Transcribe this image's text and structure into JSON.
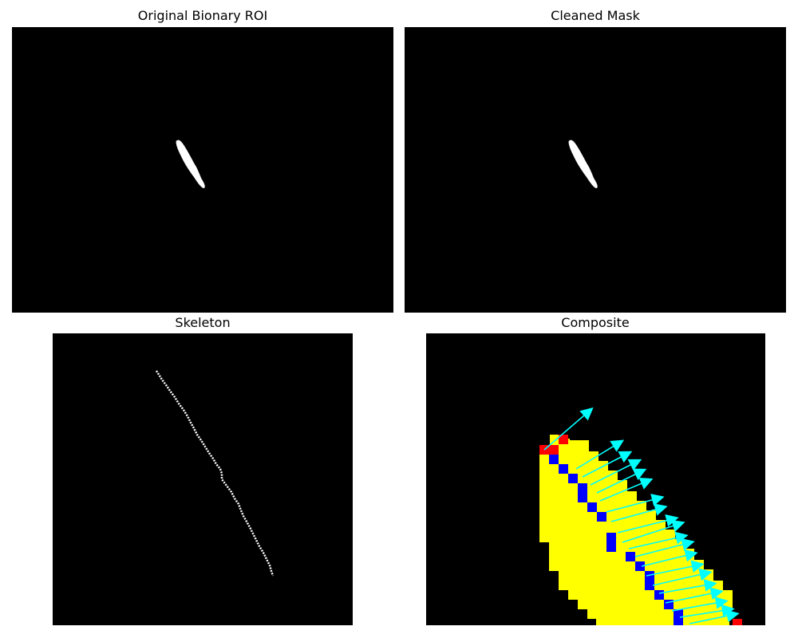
{
  "figure": {
    "background": "#ffffff",
    "panels": [
      {
        "id": "original",
        "title": "Original Bionary ROI"
      },
      {
        "id": "cleaned",
        "title": "Cleaned Mask"
      },
      {
        "id": "skeleton",
        "title": "Skeleton"
      },
      {
        "id": "composite",
        "title": "Composite"
      }
    ]
  },
  "colors": {
    "panel_bg": "#000000",
    "mask": "#ffffff",
    "skeleton": "#ffffff",
    "fill": "#ffff00",
    "edge": "#0000ff",
    "endpoint": "#ff0000",
    "arrow": "#00ffff"
  }
}
